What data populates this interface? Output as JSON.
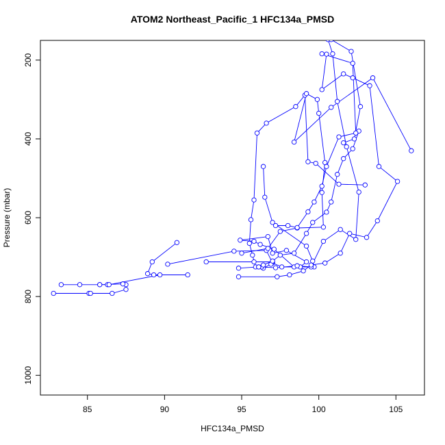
{
  "chart_data": {
    "type": "line",
    "title": "ATOM2 Northeast_Pacific_1 HFC134a_PMSD",
    "xlabel": "HFC134a_PMSD",
    "ylabel": "Pressure (mbar)",
    "xlim": [
      81.95,
      106.85
    ],
    "ylim": [
      1050,
      150
    ],
    "y_reversed": true,
    "x_ticks": [
      85,
      90,
      95,
      100,
      105
    ],
    "y_ticks": [
      200,
      400,
      600,
      800,
      1000
    ],
    "marker": "open-circle",
    "series_color": "#0000ff",
    "grid": false,
    "legend": "none",
    "series": [
      {
        "x": [
          82.8,
          85.1,
          85.2,
          86.6,
          87.5,
          87.5,
          87.3,
          85.8,
          84.5,
          83.3,
          85.8,
          86.3,
          86.4,
          89.7,
          91.5,
          89.3,
          88.9,
          89.2,
          90.8
        ],
        "y": [
          792,
          792,
          792,
          792,
          782,
          770,
          768,
          770,
          770,
          770,
          770,
          770,
          770,
          745,
          745,
          745,
          742,
          712,
          663
        ]
      },
      {
        "x": [
          90.2,
          94.5,
          96.6,
          97.0,
          97.6,
          98.8,
          99.2,
          97.9,
          97.0,
          96.7,
          94.9,
          95.8,
          96.2,
          97.1,
          98.4,
          99.7,
          99.6,
          99.2,
          97.0,
          96.5,
          96.4
        ],
        "y": [
          718,
          685,
          683,
          715,
          725,
          725,
          712,
          683,
          690,
          648,
          657,
          660,
          668,
          680,
          725,
          725,
          710,
          672,
          612,
          548,
          470
        ]
      },
      {
        "x": [
          92.7,
          95.8,
          97.0,
          96.9,
          96.4,
          96.3,
          95.9,
          95.7,
          95.5,
          95.6,
          95.8,
          96.0,
          96.6,
          98.5,
          99.1,
          99.3,
          99.8,
          101.3,
          103.0
        ],
        "y": [
          712,
          712,
          712,
          718,
          728,
          725,
          725,
          695,
          665,
          605,
          555,
          385,
          360,
          318,
          289,
          458,
          462,
          515,
          517
        ]
      },
      {
        "x": [
          94.8,
          96.1,
          97.2,
          98.6,
          99.5,
          100.3,
          101.4,
          102.4,
          102.6,
          101.8,
          101.2,
          100.9,
          100.6,
          100.8,
          102.1,
          102.7,
          102.3,
          101.6
        ],
        "y": [
          728,
          725,
          727,
          722,
          725,
          660,
          630,
          655,
          535,
          420,
          305,
          184,
          148,
          148,
          178,
          318,
          400,
          410
        ]
      },
      {
        "x": [
          94.8,
          97.3,
          98.1,
          99.0,
          99.5,
          100.4,
          101.4,
          102.0,
          103.1,
          103.8,
          105.1,
          103.9,
          103.3,
          102.2,
          101.6,
          100.2,
          100.5
        ],
        "y": [
          750,
          750,
          745,
          735,
          720,
          715,
          690,
          640,
          650,
          608,
          508,
          470,
          265,
          245,
          235,
          275,
          185
        ]
      },
      {
        "x": [
          96.1,
          96.4,
          97.0,
          97.5,
          98.4,
          99.2,
          99.6,
          100.5,
          100.8,
          101.2,
          101.6,
          102.2,
          102.6
        ],
        "y": [
          725,
          720,
          710,
          695,
          690,
          640,
          612,
          586,
          560,
          490,
          450,
          425,
          380
        ]
      },
      {
        "x": [
          95.0,
          96.7,
          97.5,
          98.6,
          100.3,
          100.2,
          100.4,
          100.0,
          99.9,
          99.2,
          98.4,
          100.8,
          103.5,
          106.0
        ],
        "y": [
          690,
          678,
          635,
          626,
          624,
          536,
          460,
          335,
          300,
          285,
          408,
          320,
          245,
          430
        ]
      },
      {
        "x": [
          97.2,
          98.0,
          98.6,
          99.3,
          99.7,
          100.2,
          100.5,
          101.3,
          102.4,
          102.2,
          100.2
        ],
        "y": [
          620,
          620,
          625,
          585,
          560,
          520,
          470,
          395,
          385,
          208,
          184
        ]
      }
    ]
  }
}
